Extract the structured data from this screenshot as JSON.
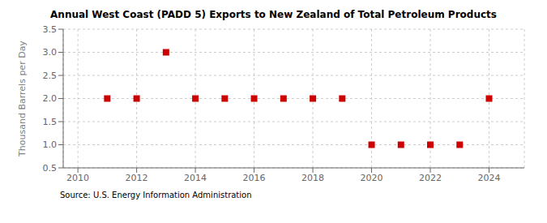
{
  "chart_data": {
    "type": "scatter",
    "title": "Annual West Coast (PADD 5) Exports to New Zealand of Total Petroleum Products",
    "ylabel": "Thousand Barrels per Day",
    "annotation": "Source: U.S. Energy Information Administration",
    "x": [
      2011,
      2012,
      2013,
      2014,
      2015,
      2016,
      2017,
      2018,
      2019,
      2020,
      2021,
      2022,
      2023,
      2024
    ],
    "values": [
      2.0,
      2.0,
      3.0,
      2.0,
      2.0,
      2.0,
      2.0,
      2.0,
      2.0,
      1.0,
      1.0,
      1.0,
      1.0,
      2.0
    ],
    "color": "#cc0000",
    "marker": "square",
    "xlim": [
      2009.5,
      2025.2
    ],
    "ylim": [
      0.5,
      3.5
    ],
    "xticks": [
      2010,
      2012,
      2014,
      2016,
      2018,
      2020,
      2022,
      2024
    ],
    "yticks": [
      0.5,
      {
        "value": 1,
        "label": "1.0"
      },
      1.5,
      {
        "value": 2,
        "label": "2.0"
      },
      2.5,
      {
        "value": 3,
        "label": "3.0"
      },
      3.5
    ],
    "grid": true
  }
}
